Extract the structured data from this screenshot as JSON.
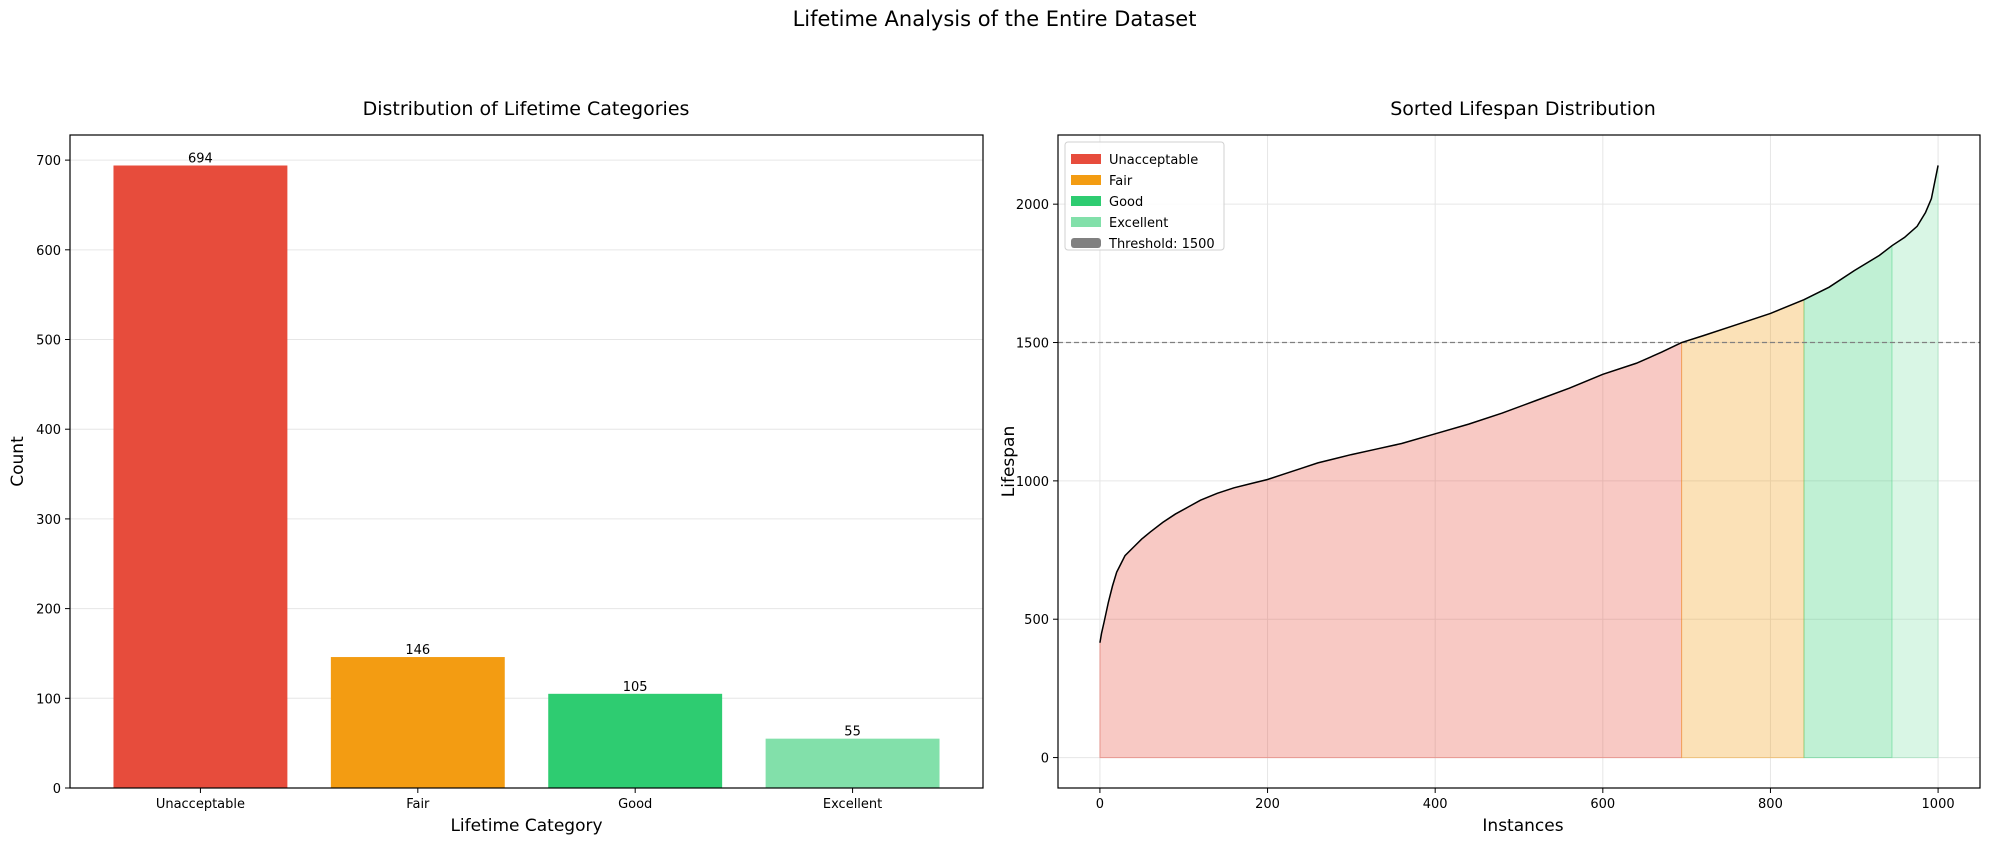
{
  "figure": {
    "suptitle": "Lifetime Analysis of the Entire Dataset"
  },
  "chart_data": [
    {
      "type": "bar",
      "title": "Distribution of Lifetime Categories",
      "xlabel": "Lifetime Category",
      "ylabel": "Count",
      "categories": [
        "Unacceptable",
        "Fair",
        "Good",
        "Excellent"
      ],
      "values": [
        694,
        146,
        105,
        55
      ],
      "data_labels": [
        "694",
        "146",
        "105",
        "55"
      ],
      "colors": [
        "#e74c3c",
        "#f39c12",
        "#2ecc71",
        "#82e0aa"
      ],
      "ylim": [
        0,
        728
      ],
      "yticks": [
        0,
        100,
        200,
        300,
        400,
        500,
        600,
        700
      ],
      "ytick_labels": [
        "0",
        "100",
        "200",
        "300",
        "400",
        "500",
        "600",
        "700"
      ],
      "grid": "y"
    },
    {
      "type": "area",
      "title": "Sorted Lifespan Distribution",
      "xlabel": "Instances",
      "ylabel": "Lifespan",
      "xlim": [
        -50,
        1050
      ],
      "ylim": [
        -110,
        2250
      ],
      "xticks": [
        0,
        200,
        400,
        600,
        800,
        1000
      ],
      "xtick_labels": [
        "0",
        "200",
        "400",
        "600",
        "800",
        "1000"
      ],
      "yticks": [
        0,
        500,
        1000,
        1500,
        2000
      ],
      "ytick_labels": [
        "0",
        "500",
        "1000",
        "1500",
        "2000"
      ],
      "grid": "both",
      "legend_position": "top-left",
      "threshold": {
        "value": 1500,
        "label": "Threshold: 1500",
        "color": "#808080",
        "style": "dashed"
      },
      "line_color": "#000000",
      "curve": {
        "x": [
          0,
          2,
          5,
          10,
          15,
          20,
          25,
          30,
          40,
          50,
          60,
          75,
          90,
          105,
          120,
          140,
          160,
          180,
          200,
          220,
          240,
          260,
          280,
          300,
          330,
          360,
          400,
          440,
          480,
          520,
          560,
          600,
          640,
          670,
          694,
          720,
          760,
          800,
          840,
          870,
          900,
          930,
          945,
          960,
          975,
          985,
          992,
          996,
          1000
        ],
        "y": [
          415,
          450,
          490,
          560,
          620,
          670,
          700,
          730,
          760,
          790,
          815,
          850,
          880,
          905,
          930,
          955,
          975,
          990,
          1005,
          1025,
          1045,
          1065,
          1080,
          1095,
          1115,
          1135,
          1170,
          1205,
          1245,
          1290,
          1335,
          1385,
          1425,
          1465,
          1500,
          1525,
          1565,
          1605,
          1655,
          1700,
          1760,
          1815,
          1850,
          1880,
          1920,
          1970,
          2020,
          2080,
          2140
        ]
      },
      "regions": [
        {
          "name": "Unacceptable",
          "x": [
            0,
            694
          ],
          "color": "#e74c3c",
          "legend_color": "#e74c3c"
        },
        {
          "name": "Fair",
          "x": [
            694,
            840
          ],
          "color": "#f39c12",
          "legend_color": "#f39c12"
        },
        {
          "name": "Good",
          "x": [
            840,
            945
          ],
          "color": "#2ecc71",
          "legend_color": "#2ecc71"
        },
        {
          "name": "Excellent",
          "x": [
            945,
            1000
          ],
          "color": "#82e0aa",
          "legend_color": "#82e0aa"
        }
      ],
      "legend": [
        "Unacceptable",
        "Fair",
        "Good",
        "Excellent",
        "Threshold: 1500"
      ]
    }
  ]
}
